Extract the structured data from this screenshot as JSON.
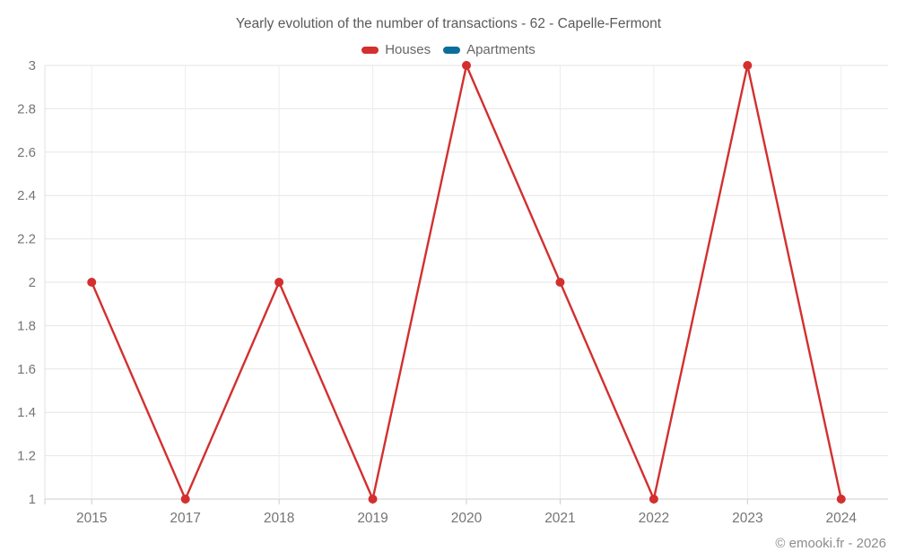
{
  "footer": {
    "copyright": "© emooki.fr - 2026"
  },
  "colors": {
    "background": "#ffffff",
    "title_text": "#5a5a5a",
    "legend_text": "#666666",
    "tick_text": "#757575",
    "grid_h": "#e6e6e6",
    "grid_v": "#ececec",
    "axis_line": "#cccccc",
    "y_axis_line": "#e0e0e0",
    "copyright_text": "#8c8c8c",
    "houses": "#d32f2f",
    "apartments": "#0c6e9d"
  },
  "chart_data": {
    "type": "line",
    "title": "Yearly evolution of the number of transactions - 62 - Capelle-Fermont",
    "categories": [
      "2015",
      "2017",
      "2018",
      "2019",
      "2020",
      "2021",
      "2022",
      "2023",
      "2024"
    ],
    "series": [
      {
        "name": "Houses",
        "color": "#d32f2f",
        "values": [
          2,
          1,
          2,
          1,
          3,
          2,
          1,
          3,
          1
        ]
      },
      {
        "name": "Apartments",
        "color": "#0c6e9d",
        "values": []
      }
    ],
    "xlabel": "",
    "ylabel": "",
    "ylim": [
      1,
      3
    ],
    "ytick_step": 0.2,
    "ytick_labels": [
      "1",
      "1.2",
      "1.4",
      "1.6",
      "1.8",
      "2",
      "2.2",
      "2.4",
      "2.6",
      "2.8",
      "3"
    ],
    "grid": true,
    "legend_position": "top"
  }
}
